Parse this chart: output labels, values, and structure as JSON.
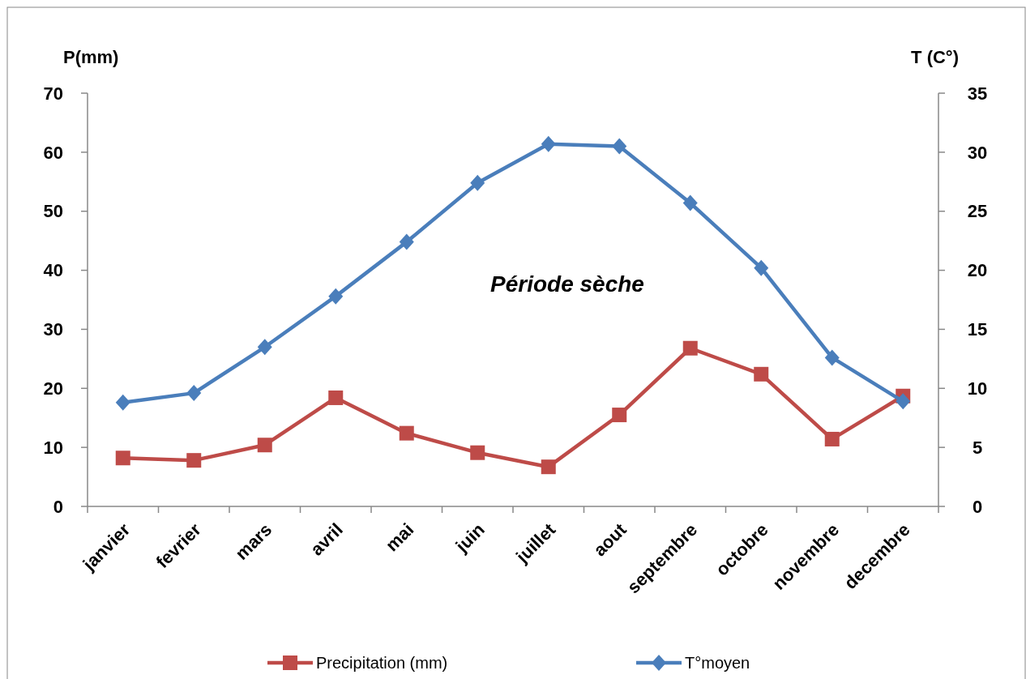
{
  "chart_data": {
    "type": "line",
    "ylabel": "P(mm)",
    "y2label": "T (C°)",
    "categories": [
      "janvier",
      "fevrier",
      "mars",
      "avril",
      "mai",
      "juin",
      "juillet",
      "aout",
      "septembre",
      "octobre",
      "novembre",
      "decembre"
    ],
    "series": [
      {
        "name": "Precipitation (mm)",
        "color": "#be4b48",
        "marker": "square",
        "values": [
          8.2,
          7.8,
          10.4,
          18.4,
          12.4,
          9.1,
          6.7,
          15.5,
          26.8,
          22.4,
          11.4,
          18.7
        ]
      },
      {
        "name": "T°moyen",
        "color": "#4a7ebb",
        "marker": "diamond",
        "axis": "y2",
        "values": [
          8.8,
          9.6,
          13.5,
          17.8,
          22.4,
          27.4,
          30.7,
          30.5,
          25.7,
          20.2,
          12.6,
          8.9
        ]
      }
    ],
    "ylim": [
      0,
      70
    ],
    "yticks": [
      0,
      10,
      20,
      30,
      40,
      50,
      60,
      70
    ],
    "y2lim": [
      0,
      35
    ],
    "y2ticks": [
      0,
      5,
      10,
      15,
      20,
      25,
      30,
      35
    ],
    "annotations": [
      "Période sèche"
    ],
    "legend": "bottom",
    "grid": false,
    "line_style": "solid"
  }
}
